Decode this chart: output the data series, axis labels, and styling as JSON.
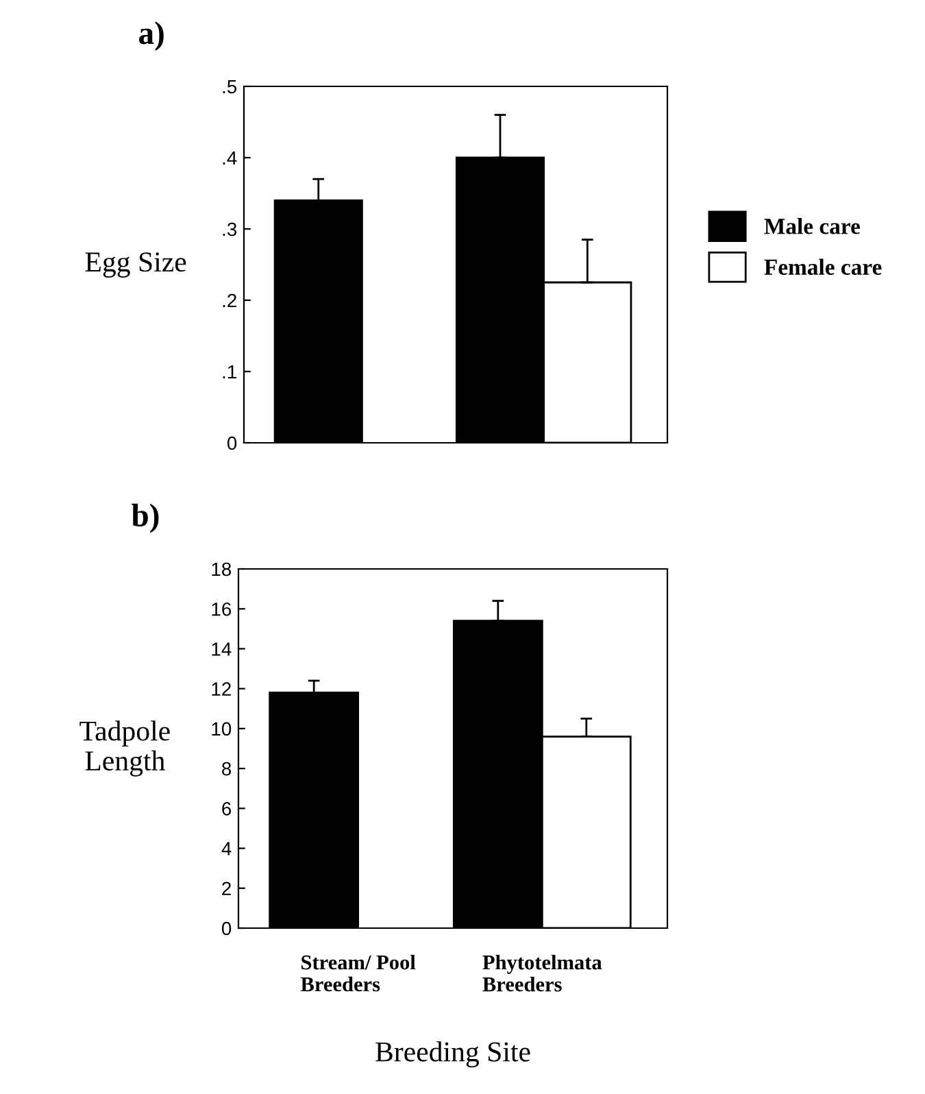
{
  "chart_data": [
    {
      "type": "bar",
      "title": "a)",
      "ylabel": "Egg Size",
      "categories": [
        null,
        null
      ],
      "series": [
        {
          "name": "Male care",
          "color": "#000000",
          "values": [
            0.34,
            0.4
          ],
          "errors": [
            [
              0.34,
              0.37
            ],
            [
              0.4,
              0.46
            ]
          ]
        },
        {
          "name": "Female care",
          "color": "#ffffff",
          "values": [
            null,
            0.225
          ],
          "errors": [
            null,
            [
              0.225,
              0.285
            ]
          ]
        }
      ],
      "ylim": [
        0,
        0.5
      ],
      "yticks": [
        {
          "value": 0,
          "label": "0"
        },
        {
          "value": 0.1,
          "label": ".1"
        },
        {
          "value": 0.2,
          "label": ".2"
        },
        {
          "value": 0.3,
          "label": ".3"
        },
        {
          "value": 0.4,
          "label": ".4"
        },
        {
          "value": 0.5,
          "label": ".5"
        }
      ],
      "tick_labels": "y",
      "legend": "right",
      "grid": false
    },
    {
      "type": "bar",
      "title": "b)",
      "ylabel": "Tadpole\nLength",
      "xlabel": "Breeding Site",
      "categories": [
        "Stream/ Pool\nBreeders",
        "Phytotelmata\nBreeders"
      ],
      "series": [
        {
          "color": "#000000",
          "values": [
            11.8,
            15.4
          ],
          "errors": [
            [
              11.8,
              12.4
            ],
            [
              15.4,
              16.4
            ]
          ]
        },
        {
          "color": "#ffffff",
          "values": [
            null,
            9.6
          ],
          "errors": [
            null,
            [
              9.6,
              10.5
            ]
          ]
        }
      ],
      "ylim": [
        0,
        18
      ],
      "yticks": [
        0,
        2,
        4,
        6,
        8,
        10,
        12,
        14,
        16,
        18
      ],
      "legend": false,
      "grid": false
    }
  ]
}
